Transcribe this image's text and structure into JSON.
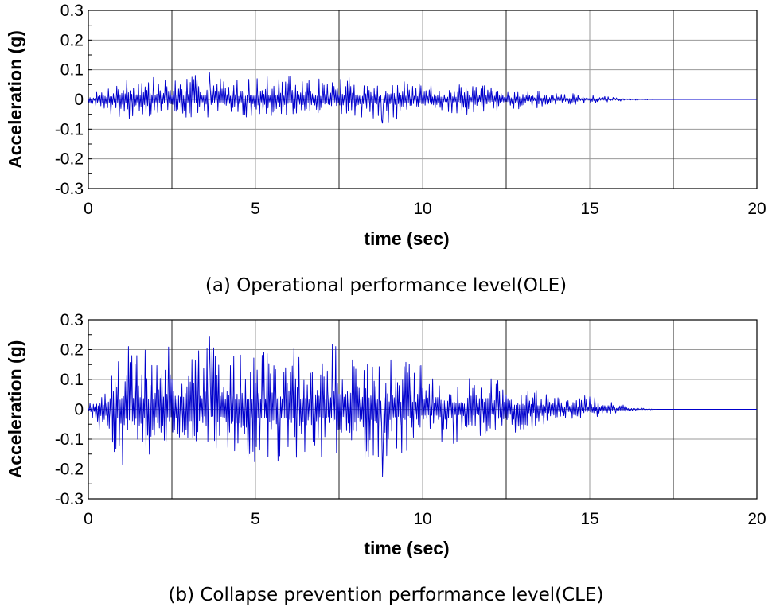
{
  "chart_data": [
    {
      "type": "line",
      "title": "",
      "caption": "(a) Operational performance level(OLE)",
      "xlabel": "time (sec)",
      "ylabel": "Acceleration (g)",
      "xlim": [
        0,
        20
      ],
      "ylim": [
        -0.3,
        0.3
      ],
      "xticks": [
        0,
        5,
        10,
        15,
        20
      ],
      "yticks": [
        0.3,
        0.2,
        0.1,
        0,
        -0.1,
        -0.2,
        -0.3
      ],
      "ytick_labels": [
        "0.3",
        "0.2",
        "0.1",
        "0",
        "-0.1",
        "-0.2",
        "-0.3"
      ],
      "grid": true,
      "line_color": "#0000cc",
      "series": [
        {
          "name": "OLE",
          "x": [
            0,
            0.5,
            1,
            1.5,
            2,
            2.5,
            3,
            3.5,
            4,
            4.5,
            5,
            5.5,
            6,
            6.5,
            7,
            7.5,
            8,
            8.5,
            9,
            9.5,
            10,
            10.5,
            11,
            11.5,
            12,
            12.5,
            13,
            13.5,
            14,
            14.5,
            15,
            15.5,
            16,
            16.5,
            17,
            20
          ],
          "env_pos": [
            0.01,
            0.04,
            0.08,
            0.09,
            0.08,
            0.08,
            0.08,
            0.09,
            0.08,
            0.07,
            0.08,
            0.08,
            0.08,
            0.08,
            0.07,
            0.08,
            0.08,
            0.06,
            0.06,
            0.06,
            0.06,
            0.05,
            0.05,
            0.05,
            0.05,
            0.04,
            0.03,
            0.03,
            0.02,
            0.02,
            0.015,
            0.01,
            0.005,
            0.003,
            0,
            0
          ],
          "env_neg": [
            -0.01,
            -0.04,
            -0.07,
            -0.06,
            -0.06,
            -0.06,
            -0.06,
            -0.06,
            -0.06,
            -0.06,
            -0.06,
            -0.06,
            -0.06,
            -0.06,
            -0.06,
            -0.06,
            -0.06,
            -0.07,
            -0.08,
            -0.06,
            -0.05,
            -0.05,
            -0.05,
            -0.05,
            -0.04,
            -0.04,
            -0.03,
            -0.03,
            -0.02,
            -0.02,
            -0.015,
            -0.01,
            -0.005,
            -0.003,
            0,
            0
          ],
          "peak_max": 0.09,
          "peak_min": -0.08
        }
      ]
    },
    {
      "type": "line",
      "title": "",
      "caption": "(b) Collapse prevention performance level(CLE)",
      "xlabel": "time (sec)",
      "ylabel": "Acceleration (g)",
      "xlim": [
        0,
        20
      ],
      "ylim": [
        -0.3,
        0.3
      ],
      "xticks": [
        0,
        5,
        10,
        15,
        20
      ],
      "yticks": [
        0.3,
        0.2,
        0.1,
        0,
        -0.1,
        -0.2,
        -0.3
      ],
      "ytick_labels": [
        "0.3",
        "0.2",
        "0.1",
        "0",
        "-0.1",
        "-0.2",
        "-0.3"
      ],
      "grid": true,
      "line_color": "#0000cc",
      "series": [
        {
          "name": "CLE",
          "x": [
            0,
            0.5,
            1,
            1.5,
            2,
            2.5,
            3,
            3.5,
            4,
            4.5,
            5,
            5.5,
            6,
            6.5,
            7,
            7.5,
            8,
            8.5,
            9,
            9.5,
            10,
            10.5,
            11,
            11.5,
            12,
            12.5,
            13,
            13.5,
            14,
            14.5,
            15,
            15.5,
            16,
            16.5,
            17,
            20
          ],
          "env_pos": [
            0.02,
            0.1,
            0.22,
            0.24,
            0.21,
            0.21,
            0.22,
            0.24,
            0.21,
            0.2,
            0.2,
            0.21,
            0.2,
            0.22,
            0.19,
            0.24,
            0.22,
            0.18,
            0.17,
            0.16,
            0.15,
            0.12,
            0.12,
            0.11,
            0.13,
            0.1,
            0.09,
            0.07,
            0.06,
            0.05,
            0.06,
            0.03,
            0.015,
            0.005,
            0,
            0
          ],
          "env_neg": [
            -0.02,
            -0.1,
            -0.19,
            -0.16,
            -0.17,
            -0.17,
            -0.17,
            -0.15,
            -0.16,
            -0.17,
            -0.18,
            -0.19,
            -0.17,
            -0.16,
            -0.17,
            -0.16,
            -0.17,
            -0.23,
            -0.17,
            -0.15,
            -0.13,
            -0.12,
            -0.12,
            -0.11,
            -0.1,
            -0.1,
            -0.08,
            -0.07,
            -0.05,
            -0.04,
            -0.03,
            -0.02,
            -0.01,
            -0.005,
            0,
            0
          ],
          "peak_max": 0.245,
          "peak_min": -0.225
        }
      ]
    }
  ]
}
